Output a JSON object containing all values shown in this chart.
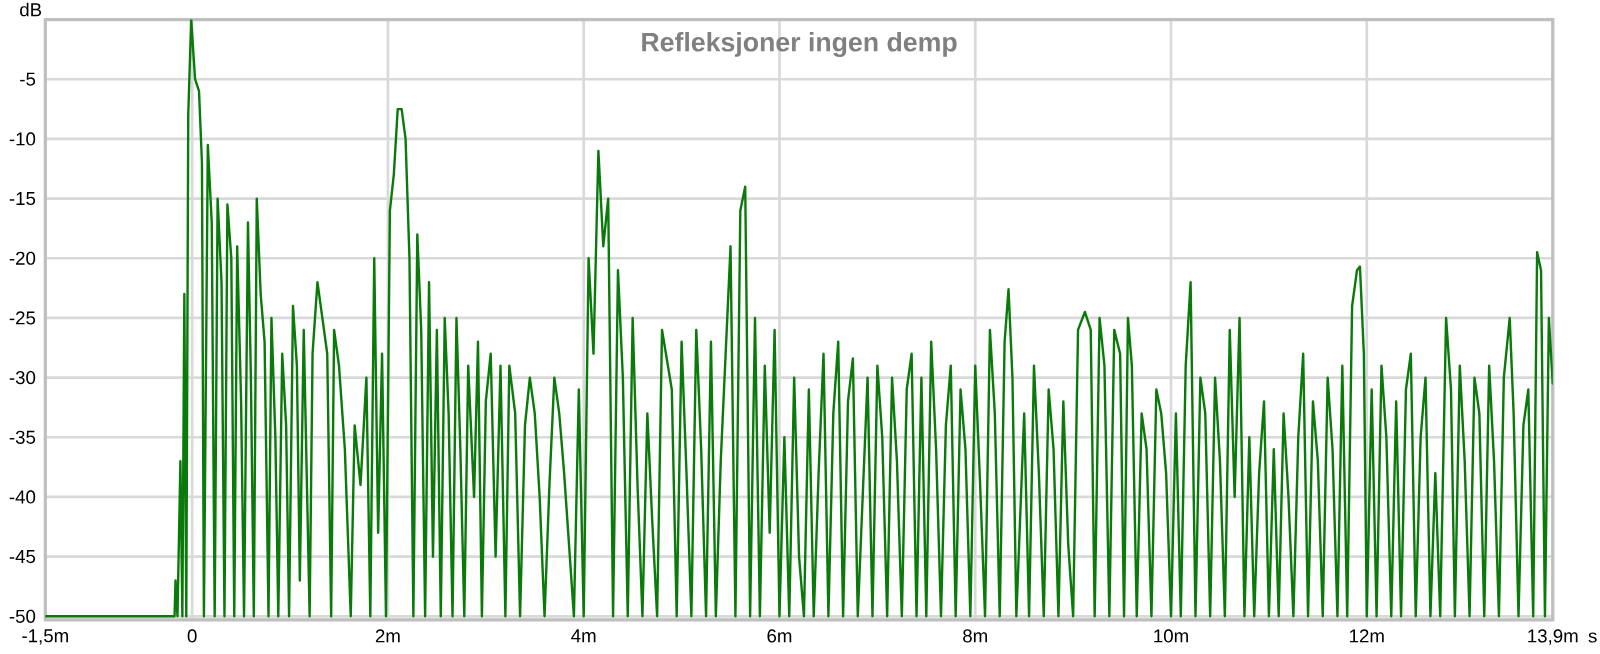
{
  "chart_data": {
    "type": "line",
    "title": "Refleksjoner ingen demp",
    "ylabel": "dB",
    "xlabel": "s",
    "xlim": [
      -1.5,
      13.9
    ],
    "ylim": [
      -50.3,
      0
    ],
    "xticks": [
      {
        "value": -1.5,
        "label": "-1,5m"
      },
      0,
      {
        "value": 2,
        "label": "2m"
      },
      {
        "value": 4,
        "label": "4m"
      },
      {
        "value": 6,
        "label": "6m"
      },
      {
        "value": 8,
        "label": "8m"
      },
      {
        "value": 10,
        "label": "10m"
      },
      {
        "value": 12,
        "label": "12m"
      },
      {
        "value": 13.9,
        "label": "13,9m"
      }
    ],
    "yticks": [
      -5,
      -10,
      -15,
      -20,
      -25,
      -30,
      -35,
      -40,
      -45,
      -50
    ],
    "grid": true,
    "marker": "none",
    "line_style": "solid",
    "series": [
      {
        "color": "#0a7a0a",
        "x": [
          -1.5,
          -0.18,
          -0.17,
          -0.15,
          -0.12,
          -0.1,
          -0.08,
          -0.06,
          -0.04,
          -0.01,
          0.03,
          0.07,
          0.1,
          0.12,
          0.16,
          0.2,
          0.23,
          0.26,
          0.3,
          0.33,
          0.36,
          0.4,
          0.43,
          0.46,
          0.5,
          0.53,
          0.57,
          0.6,
          0.63,
          0.66,
          0.7,
          0.74,
          0.78,
          0.81,
          0.85,
          0.88,
          0.92,
          0.96,
          0.99,
          1.03,
          1.07,
          1.1,
          1.14,
          1.2,
          1.23,
          1.28,
          1.33,
          1.38,
          1.42,
          1.45,
          1.5,
          1.56,
          1.62,
          1.66,
          1.72,
          1.78,
          1.82,
          1.86,
          1.9,
          1.94,
          1.98,
          2.02,
          2.06,
          2.1,
          2.14,
          2.18,
          2.22,
          2.26,
          2.3,
          2.34,
          2.38,
          2.42,
          2.46,
          2.5,
          2.54,
          2.58,
          2.62,
          2.66,
          2.7,
          2.74,
          2.78,
          2.82,
          2.88,
          2.92,
          2.96,
          3.0,
          3.05,
          3.1,
          3.15,
          3.2,
          3.24,
          3.3,
          3.35,
          3.4,
          3.45,
          3.5,
          3.55,
          3.6,
          3.65,
          3.7,
          3.75,
          3.8,
          3.85,
          3.9,
          3.95,
          4.0,
          4.05,
          4.1,
          4.15,
          4.2,
          4.25,
          4.3,
          4.35,
          4.4,
          4.45,
          4.5,
          4.55,
          4.6,
          4.65,
          4.7,
          4.75,
          4.8,
          4.9,
          4.95,
          5.0,
          5.05,
          5.1,
          5.15,
          5.2,
          5.25,
          5.3,
          5.35,
          5.4,
          5.5,
          5.55,
          5.6,
          5.65,
          5.7,
          5.75,
          5.8,
          5.85,
          5.9,
          5.95,
          6.0,
          6.05,
          6.1,
          6.15,
          6.2,
          6.25,
          6.3,
          6.35,
          6.4,
          6.45,
          6.5,
          6.55,
          6.6,
          6.65,
          6.7,
          6.75,
          6.8,
          6.85,
          6.9,
          6.95,
          7.0,
          7.05,
          7.1,
          7.15,
          7.2,
          7.25,
          7.3,
          7.35,
          7.4,
          7.45,
          7.5,
          7.55,
          7.6,
          7.65,
          7.7,
          7.75,
          7.8,
          7.85,
          7.9,
          7.95,
          8.0,
          8.05,
          8.1,
          8.15,
          8.2,
          8.25,
          8.3,
          8.34,
          8.38,
          8.42,
          8.5,
          8.55,
          8.6,
          8.65,
          8.7,
          8.75,
          8.8,
          8.85,
          8.9,
          8.95,
          9.0,
          9.05,
          9.12,
          9.18,
          9.22,
          9.27,
          9.32,
          9.37,
          9.42,
          9.48,
          9.52,
          9.56,
          9.6,
          9.65,
          9.7,
          9.75,
          9.8,
          9.85,
          9.9,
          9.95,
          10.0,
          10.05,
          10.1,
          10.15,
          10.2,
          10.25,
          10.3,
          10.35,
          10.4,
          10.45,
          10.5,
          10.55,
          10.6,
          10.65,
          10.7,
          10.75,
          10.8,
          10.85,
          10.9,
          10.95,
          11.0,
          11.05,
          11.1,
          11.15,
          11.2,
          11.25,
          11.3,
          11.35,
          11.4,
          11.45,
          11.5,
          11.55,
          11.6,
          11.65,
          11.7,
          11.75,
          11.8,
          11.85,
          11.9,
          11.93,
          11.97,
          12.0,
          12.05,
          12.1,
          12.15,
          12.2,
          12.25,
          12.3,
          12.35,
          12.4,
          12.45,
          12.5,
          12.55,
          12.6,
          12.65,
          12.7,
          12.75,
          12.81,
          12.86,
          12.9,
          12.95,
          13.0,
          13.05,
          13.1,
          13.15,
          13.2,
          13.25,
          13.3,
          13.35,
          13.4,
          13.46,
          13.5,
          13.55,
          13.6,
          13.65,
          13.7,
          13.74,
          13.78,
          13.82,
          13.86,
          13.9
        ],
        "values": [
          -50,
          -50,
          -47,
          -50,
          -37,
          -50,
          -23,
          -50,
          -8,
          0,
          -5,
          -6,
          -12,
          -50,
          -10.5,
          -17,
          -50,
          -15,
          -22,
          -50,
          -15.5,
          -20,
          -50,
          -19,
          -32,
          -50,
          -17,
          -30,
          -50,
          -15,
          -23,
          -27,
          -50,
          -25,
          -35,
          -50,
          -28,
          -34,
          -50,
          -24,
          -29,
          -47,
          -26,
          -50,
          -28,
          -22,
          -25,
          -28,
          -50,
          -26,
          -29,
          -36,
          -50,
          -34,
          -39,
          -30,
          -50,
          -20,
          -43,
          -28,
          -50,
          -16,
          -13,
          -7.5,
          -7.5,
          -10,
          -20,
          -50,
          -18,
          -26,
          -50,
          -22,
          -45,
          -26,
          -50,
          -25,
          -33,
          -50,
          -25,
          -36,
          -50,
          -29,
          -40,
          -27,
          -50,
          -32,
          -28,
          -45,
          -29,
          -50,
          -29,
          -33,
          -50,
          -34,
          -30,
          -33,
          -40,
          -50,
          -39,
          -30,
          -33,
          -38,
          -44,
          -50,
          -31,
          -50,
          -20,
          -28,
          -11,
          -19,
          -15,
          -50,
          -21,
          -30,
          -50,
          -25,
          -39,
          -50,
          -33,
          -42,
          -50,
          -26,
          -31,
          -50,
          -27,
          -38,
          -50,
          -26,
          -36,
          -50,
          -27,
          -50,
          -37,
          -19,
          -50,
          -16,
          -14,
          -50,
          -25,
          -50,
          -29,
          -43,
          -26,
          -50,
          -35,
          -50,
          -30,
          -45,
          -50,
          -31,
          -50,
          -38,
          -28,
          -50,
          -33,
          -27,
          -50,
          -32,
          -28.4,
          -50,
          -40,
          -30,
          -50,
          -29,
          -35,
          -50,
          -30,
          -37,
          -50,
          -31,
          -28,
          -50,
          -30,
          -50,
          -27,
          -36,
          -50,
          -34,
          -29,
          -50,
          -31,
          -36,
          -50,
          -29,
          -39,
          -50,
          -26,
          -33,
          -50,
          -27,
          -22.6,
          -30,
          -50,
          -33,
          -50,
          -29,
          -38,
          -50,
          -31,
          -36,
          -50,
          -32,
          -44,
          -50,
          -26,
          -24.5,
          -26,
          -50,
          -25,
          -29,
          -50,
          -26,
          -28,
          -50,
          -25,
          -29,
          -50,
          -33,
          -36,
          -50,
          -31,
          -33,
          -38,
          -50,
          -33,
          -50,
          -29,
          -22,
          -50,
          -30,
          -33,
          -50,
          -30,
          -37,
          -50,
          -26,
          -40,
          -25,
          -50,
          -35,
          -50,
          -38,
          -32,
          -50,
          -36,
          -50,
          -33,
          -40,
          -50,
          -35,
          -28,
          -50,
          -32,
          -37,
          -50,
          -30,
          -36,
          -50,
          -29,
          -50,
          -24,
          -21,
          -20.7,
          -28,
          -50,
          -31,
          -50,
          -29,
          -35,
          -50,
          -32,
          -50,
          -31,
          -28,
          -50,
          -35,
          -30,
          -50,
          -38,
          -50,
          -25,
          -31,
          -50,
          -29,
          -37,
          -50,
          -30,
          -33,
          -50,
          -29,
          -37,
          -50,
          -30,
          -25,
          -33,
          -50,
          -34,
          -31,
          -50,
          -19.5,
          -21,
          -50,
          -25,
          -30.5
        ]
      }
    ]
  }
}
